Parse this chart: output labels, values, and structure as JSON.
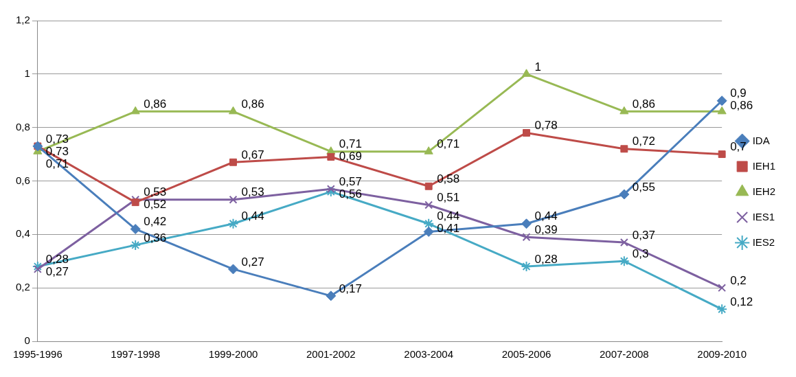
{
  "chart_data": {
    "type": "line",
    "categories": [
      "1995-1996",
      "1997-1998",
      "1999-2000",
      "2001-2002",
      "2003-2004",
      "2005-2006",
      "2007-2008",
      "2009-2010"
    ],
    "series": [
      {
        "name": "IDA",
        "color": "#4a7ebb",
        "marker": "diamond",
        "values": [
          0.73,
          0.42,
          0.27,
          0.17,
          0.41,
          0.44,
          0.55,
          0.9
        ],
        "value_labels": [
          "0,73",
          "0,42",
          "0,27",
          "0,17",
          "0,41",
          "0,44",
          "0,55",
          "0,9"
        ]
      },
      {
        "name": "IEH1",
        "color": "#be4b48",
        "marker": "square",
        "values": [
          0.73,
          0.52,
          0.67,
          0.69,
          0.58,
          0.78,
          0.72,
          0.7
        ],
        "value_labels": [
          "0,73",
          "0,52",
          "0,67",
          "0,69",
          "0,58",
          "0,78",
          "0,72",
          "0,7"
        ]
      },
      {
        "name": "IEH2",
        "color": "#98b954",
        "marker": "triangle",
        "values": [
          0.71,
          0.86,
          0.86,
          0.71,
          0.71,
          1,
          0.86,
          0.86
        ],
        "value_labels": [
          "0,71",
          "0,86",
          "0,86",
          "0,71",
          "0,71",
          "1",
          "0,86",
          "0,86"
        ]
      },
      {
        "name": "IES1",
        "color": "#7d60a0",
        "marker": "cross",
        "values": [
          0.27,
          0.53,
          0.53,
          0.57,
          0.51,
          0.39,
          0.37,
          0.2
        ],
        "value_labels": [
          "0,27",
          "0,53",
          "0,53",
          "0,57",
          "0,51",
          "0,39",
          "0,37",
          "0,2"
        ]
      },
      {
        "name": "IES2",
        "color": "#46aac5",
        "marker": "cross",
        "values": [
          0.28,
          0.36,
          0.44,
          0.56,
          0.44,
          0.28,
          0.3,
          0.12
        ],
        "value_labels": [
          "0,28",
          "0,36",
          "0,44",
          "0,56",
          "0,44",
          "0,28",
          "0,3",
          "0,12"
        ]
      }
    ],
    "ylim": [
      0,
      1.2
    ],
    "yticks": [
      0,
      {
        "value": 0.2,
        "label": "0,2"
      },
      {
        "value": 0.4,
        "label": "0,4"
      },
      {
        "value": 0.6,
        "label": "0,6"
      },
      {
        "value": 0.8,
        "label": "0,8"
      },
      1,
      {
        "value": 1.2,
        "label": "1,2"
      }
    ],
    "grid": "y",
    "legend": "right",
    "line_style": "solid"
  }
}
